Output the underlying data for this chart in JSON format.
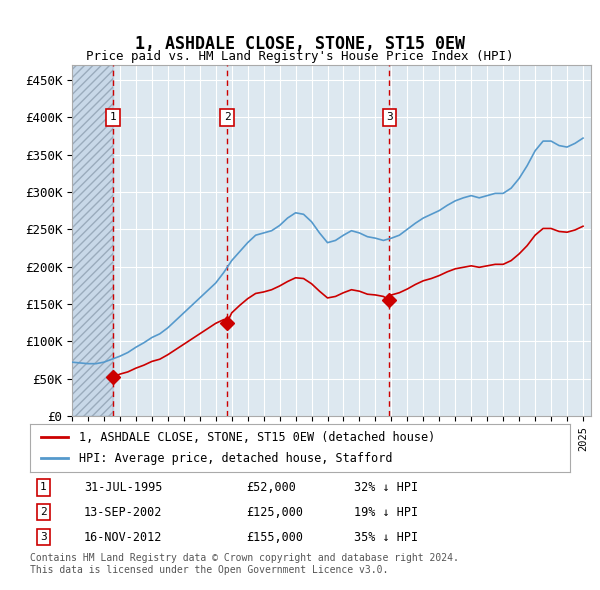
{
  "title": "1, ASHDALE CLOSE, STONE, ST15 0EW",
  "subtitle": "Price paid vs. HM Land Registry's House Price Index (HPI)",
  "ylabel_ticks": [
    "£0",
    "£50K",
    "£100K",
    "£150K",
    "£200K",
    "£250K",
    "£300K",
    "£350K",
    "£400K",
    "£450K"
  ],
  "ytick_values": [
    0,
    50000,
    100000,
    150000,
    200000,
    250000,
    300000,
    350000,
    400000,
    450000
  ],
  "ylim": [
    0,
    470000
  ],
  "xlim_start": 1993.0,
  "xlim_end": 2025.5,
  "hatch_end": 1995.58,
  "sales": [
    {
      "date": 1995.58,
      "price": 52000,
      "label": "1"
    },
    {
      "date": 2002.71,
      "price": 125000,
      "label": "2"
    },
    {
      "date": 2012.88,
      "price": 155000,
      "label": "3"
    }
  ],
  "legend_line1": "1, ASHDALE CLOSE, STONE, ST15 0EW (detached house)",
  "legend_line2": "HPI: Average price, detached house, Stafford",
  "table_rows": [
    {
      "num": "1",
      "date": "31-JUL-1995",
      "price": "£52,000",
      "hpi": "32% ↓ HPI"
    },
    {
      "num": "2",
      "date": "13-SEP-2002",
      "price": "£125,000",
      "hpi": "19% ↓ HPI"
    },
    {
      "num": "3",
      "date": "16-NOV-2012",
      "price": "£155,000",
      "hpi": "35% ↓ HPI"
    }
  ],
  "footnote": "Contains HM Land Registry data © Crown copyright and database right 2024.\nThis data is licensed under the Open Government Licence v3.0.",
  "red_color": "#cc0000",
  "blue_color": "#5599cc",
  "bg_color": "#dde8f0",
  "hatch_color": "#c8d8e8",
  "grid_color": "#ffffff",
  "hpi_data_x": [
    1993.0,
    1993.5,
    1994.0,
    1994.5,
    1995.0,
    1995.5,
    1996.0,
    1996.5,
    1997.0,
    1997.5,
    1998.0,
    1998.5,
    1999.0,
    1999.5,
    2000.0,
    2000.5,
    2001.0,
    2001.5,
    2002.0,
    2002.5,
    2003.0,
    2003.5,
    2004.0,
    2004.5,
    2005.0,
    2005.5,
    2006.0,
    2006.5,
    2007.0,
    2007.5,
    2008.0,
    2008.5,
    2009.0,
    2009.5,
    2010.0,
    2010.5,
    2011.0,
    2011.5,
    2012.0,
    2012.5,
    2013.0,
    2013.5,
    2014.0,
    2014.5,
    2015.0,
    2015.5,
    2016.0,
    2016.5,
    2017.0,
    2017.5,
    2018.0,
    2018.5,
    2019.0,
    2019.5,
    2020.0,
    2020.5,
    2021.0,
    2021.5,
    2022.0,
    2022.5,
    2023.0,
    2023.5,
    2024.0,
    2024.5,
    2025.0
  ],
  "hpi_data_y": [
    72000,
    71000,
    70000,
    70000,
    72000,
    76000,
    80000,
    85000,
    92000,
    98000,
    105000,
    110000,
    118000,
    128000,
    138000,
    148000,
    158000,
    168000,
    178000,
    192000,
    208000,
    220000,
    232000,
    242000,
    245000,
    248000,
    255000,
    265000,
    272000,
    270000,
    260000,
    245000,
    232000,
    235000,
    242000,
    248000,
    245000,
    240000,
    238000,
    235000,
    238000,
    242000,
    250000,
    258000,
    265000,
    270000,
    275000,
    282000,
    288000,
    292000,
    295000,
    292000,
    295000,
    298000,
    298000,
    305000,
    318000,
    335000,
    355000,
    368000,
    368000,
    362000,
    360000,
    365000,
    372000
  ],
  "price_data_x": [
    1995.58,
    1996.0,
    1996.5,
    1997.0,
    1997.5,
    1998.0,
    1998.5,
    1999.0,
    1999.5,
    2000.0,
    2000.5,
    2001.0,
    2001.5,
    2002.0,
    2002.5,
    2002.71,
    2003.0,
    2003.5,
    2004.0,
    2004.5,
    2005.0,
    2005.5,
    2006.0,
    2006.5,
    2007.0,
    2007.5,
    2008.0,
    2008.5,
    2009.0,
    2009.5,
    2010.0,
    2010.5,
    2011.0,
    2011.5,
    2012.0,
    2012.5,
    2012.88,
    2013.0,
    2013.5,
    2014.0,
    2014.5,
    2015.0,
    2015.5,
    2016.0,
    2016.5,
    2017.0,
    2017.5,
    2018.0,
    2018.5,
    2019.0,
    2019.5,
    2020.0,
    2020.5,
    2021.0,
    2021.5,
    2022.0,
    2022.5,
    2023.0,
    2023.5,
    2024.0,
    2024.5,
    2025.0
  ],
  "price_data_y": [
    52000,
    56000,
    59000,
    64000,
    68000,
    73000,
    76000,
    82000,
    89000,
    96000,
    103000,
    110000,
    117000,
    124000,
    129000,
    125000,
    138000,
    148000,
    157000,
    164000,
    166000,
    169000,
    174000,
    180000,
    185000,
    184000,
    177000,
    167000,
    158000,
    160000,
    165000,
    169000,
    167000,
    163000,
    162000,
    160000,
    155000,
    162000,
    165000,
    170000,
    176000,
    181000,
    184000,
    188000,
    193000,
    197000,
    199000,
    201000,
    199000,
    201000,
    203000,
    203000,
    208000,
    217000,
    228000,
    242000,
    251000,
    251000,
    247000,
    246000,
    249000,
    254000
  ]
}
